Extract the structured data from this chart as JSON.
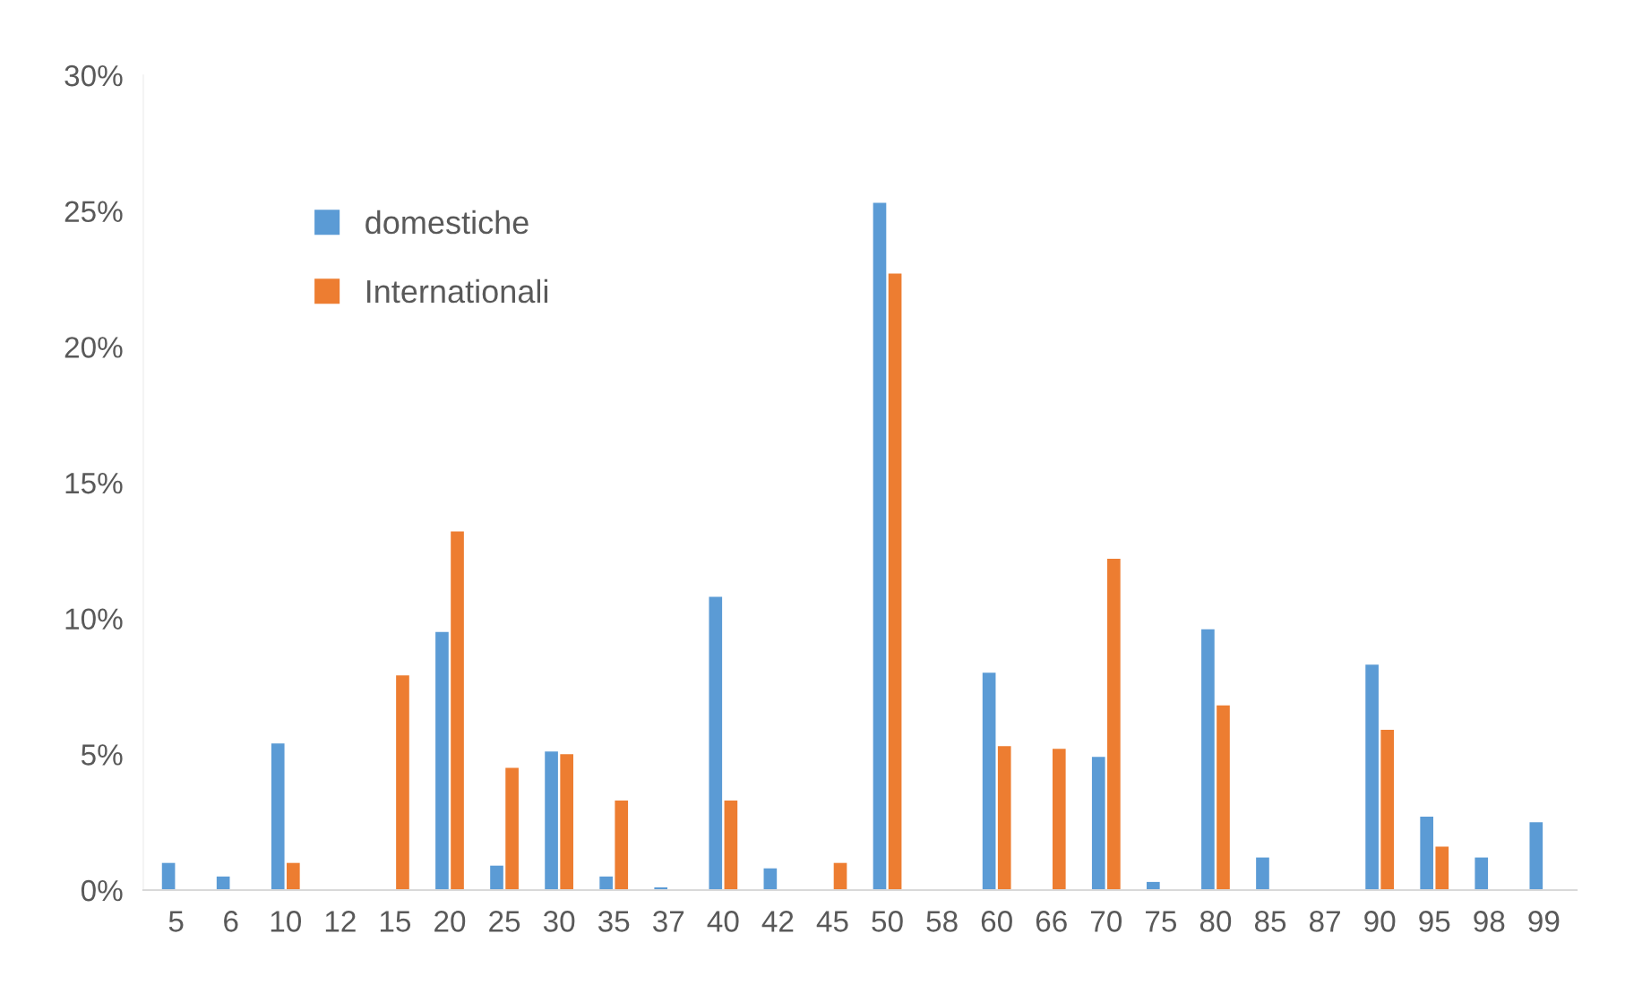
{
  "chart_data": {
    "type": "bar",
    "categories": [
      "5",
      "6",
      "10",
      "12",
      "15",
      "20",
      "25",
      "30",
      "35",
      "37",
      "40",
      "42",
      "45",
      "50",
      "58",
      "60",
      "66",
      "70",
      "75",
      "80",
      "85",
      "87",
      "90",
      "95",
      "98",
      "99"
    ],
    "series": [
      {
        "name": "domestiche",
        "color": "#5b9bd5",
        "values": [
          1.0,
          0.5,
          5.4,
          null,
          null,
          9.5,
          0.9,
          5.1,
          0.5,
          0.1,
          10.8,
          0.8,
          null,
          25.3,
          null,
          8.0,
          null,
          4.9,
          0.3,
          9.6,
          1.2,
          null,
          8.3,
          2.7,
          1.2,
          2.5
        ]
      },
      {
        "name": "Internationali",
        "color": "#ed7d31",
        "values": [
          null,
          null,
          1.0,
          null,
          7.9,
          13.2,
          4.5,
          5.0,
          3.3,
          null,
          3.3,
          null,
          1.0,
          22.7,
          null,
          5.3,
          5.2,
          12.2,
          null,
          6.8,
          null,
          null,
          5.9,
          1.6,
          null,
          null
        ]
      }
    ],
    "ylim": [
      0,
      30
    ],
    "yticks": [
      {
        "value": 0,
        "label": "0%"
      },
      {
        "value": 5,
        "label": "5%"
      },
      {
        "value": 10,
        "label": "10%"
      },
      {
        "value": 15,
        "label": "15%"
      },
      {
        "value": 20,
        "label": "20%"
      },
      {
        "value": 25,
        "label": "25%"
      },
      {
        "value": 30,
        "label": "30%"
      }
    ],
    "grid": false,
    "legend": "top left"
  }
}
